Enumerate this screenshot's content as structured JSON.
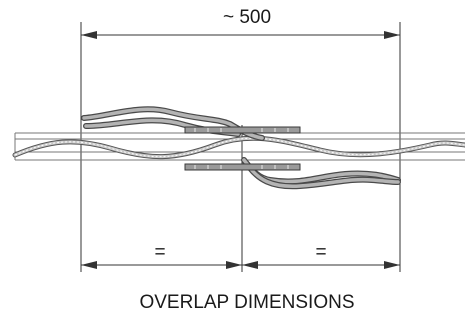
{
  "diagram": {
    "overall_dimension_label": "~ 500",
    "left_half_label": "=",
    "right_half_label": "=",
    "caption": "OVERLAP DIMENSIONS"
  }
}
